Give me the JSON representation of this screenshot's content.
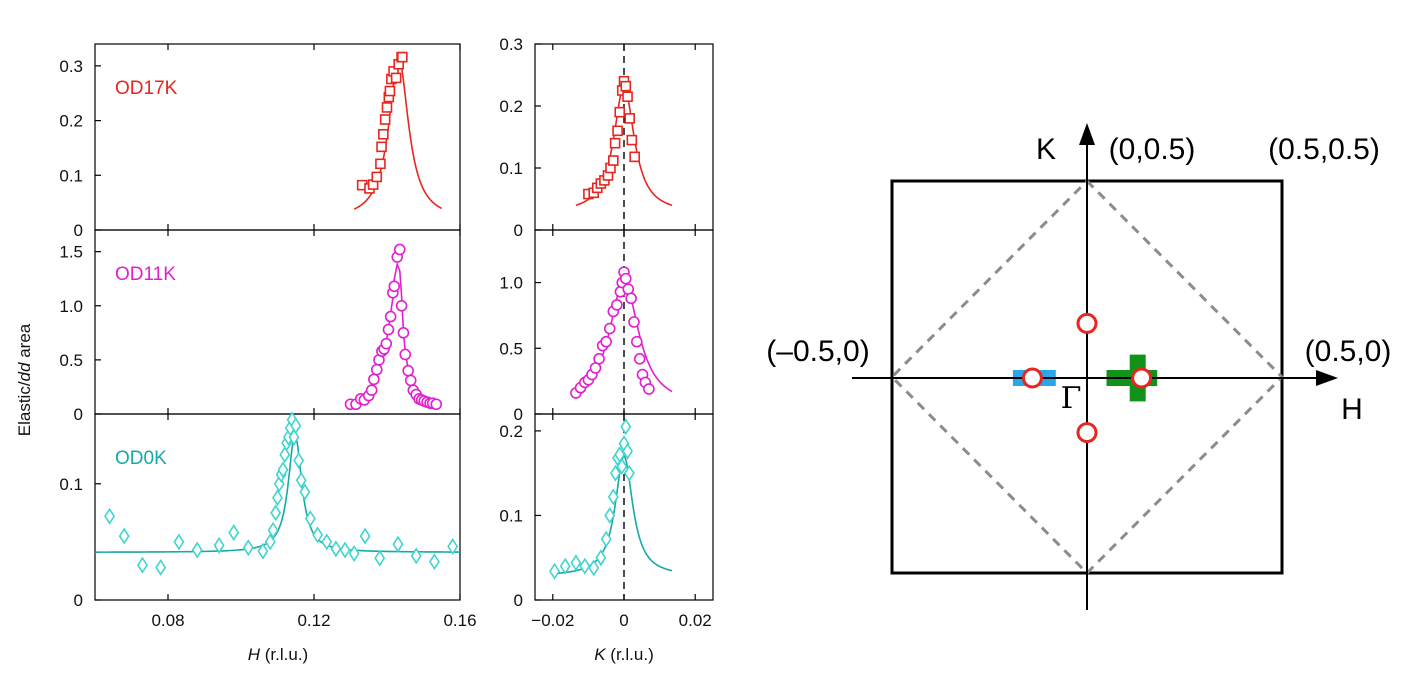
{
  "colors": {
    "od17k": "#e8251f",
    "od11k": "#e21fd0",
    "od0k": "#16a9a6",
    "od0k_markers": "#3fd4cf",
    "cut_h": "#2aa7e8",
    "cut_k": "#119319",
    "peak_marker": "#e8251f",
    "zone_line": "#8c8c8c"
  },
  "shared": {
    "ylabel": "Elastic/dd area",
    "ylabel_prefix": "Elastic/",
    "ylabel_italic": "dd",
    "ylabel_suffix": " area",
    "h_xlabel_var": "H",
    "h_xlabel_unit": " (r.l.u.)",
    "k_xlabel_var": "K",
    "k_xlabel_unit": " (r.l.u.)"
  },
  "chart_data": [
    {
      "type": "scatter",
      "panel": "h_od17k",
      "label": "OD17K",
      "color_key": "od17k",
      "marker": "square",
      "xlim": [
        0.06,
        0.16
      ],
      "ylim": [
        0,
        0.34
      ],
      "xticks": [
        0.08,
        0.12,
        0.16
      ],
      "xtick_labels": [],
      "yticks": [
        0,
        0.1,
        0.2,
        0.3
      ],
      "ytick_labels": [
        "0",
        "0.1",
        "0.2",
        "0.3"
      ],
      "x": [
        0.1332,
        0.1352,
        0.1362,
        0.1372,
        0.1382,
        0.1385,
        0.139,
        0.1395,
        0.14,
        0.1405,
        0.1408,
        0.1412,
        0.1418,
        0.1425,
        0.1432,
        0.144,
        0.1442
      ],
      "y": [
        0.082,
        0.076,
        0.083,
        0.097,
        0.121,
        0.152,
        0.175,
        0.202,
        0.224,
        0.243,
        0.254,
        0.276,
        0.29,
        0.278,
        0.303,
        0.316,
        0.316
      ],
      "fit": {
        "center": 0.1432,
        "amplitude": 0.295,
        "hwhm": 0.0033,
        "baseline": 0.018,
        "x_range": [
          0.131,
          0.155
        ]
      }
    },
    {
      "type": "scatter",
      "panel": "h_od11k",
      "label": "OD11K",
      "color_key": "od11k",
      "marker": "circle",
      "xlim": [
        0.06,
        0.16
      ],
      "ylim": [
        0,
        1.7
      ],
      "xticks": [
        0.08,
        0.12,
        0.16
      ],
      "xtick_labels": [],
      "yticks": [
        0,
        0.5,
        1.0,
        1.5
      ],
      "ytick_labels": [
        "0",
        "0.5",
        "1.0",
        "1.5"
      ],
      "x": [
        0.13,
        0.1315,
        0.1328,
        0.1338,
        0.135,
        0.1358,
        0.1364,
        0.1372,
        0.1378,
        0.1386,
        0.1392,
        0.1398,
        0.1404,
        0.141,
        0.1416,
        0.142,
        0.1428,
        0.1435,
        0.144,
        0.1445,
        0.145,
        0.1458,
        0.1465,
        0.1472,
        0.148,
        0.1488,
        0.1495,
        0.1502,
        0.151,
        0.1518,
        0.1525,
        0.1535
      ],
      "y": [
        0.09,
        0.09,
        0.14,
        0.13,
        0.17,
        0.22,
        0.32,
        0.41,
        0.5,
        0.58,
        0.6,
        0.65,
        0.78,
        0.9,
        1.12,
        1.18,
        1.45,
        1.52,
        1.0,
        0.75,
        0.55,
        0.4,
        0.31,
        0.22,
        0.18,
        0.14,
        0.13,
        0.12,
        0.11,
        0.1,
        0.1,
        0.09
      ]
    },
    {
      "type": "scatter",
      "panel": "h_od0k",
      "label": "OD0K",
      "color_key": "od0k",
      "marker": "diamond",
      "xlim": [
        0.06,
        0.16
      ],
      "ylim": [
        0,
        0.16
      ],
      "xticks": [
        0.08,
        0.12,
        0.16
      ],
      "xtick_labels": [
        "0.08",
        "0.12",
        "0.16"
      ],
      "yticks": [
        0,
        0.1
      ],
      "ytick_labels": [
        "0",
        "0.1"
      ],
      "x": [
        0.064,
        0.068,
        0.073,
        0.078,
        0.083,
        0.088,
        0.094,
        0.098,
        0.102,
        0.106,
        0.108,
        0.1088,
        0.1095,
        0.11,
        0.1105,
        0.111,
        0.1115,
        0.112,
        0.1125,
        0.113,
        0.1135,
        0.114,
        0.1145,
        0.115,
        0.1158,
        0.1165,
        0.1175,
        0.119,
        0.121,
        0.1235,
        0.126,
        0.1285,
        0.131,
        0.134,
        0.138,
        0.143,
        0.148,
        0.153,
        0.158
      ],
      "y": [
        0.072,
        0.055,
        0.03,
        0.028,
        0.05,
        0.043,
        0.047,
        0.058,
        0.045,
        0.042,
        0.05,
        0.06,
        0.075,
        0.088,
        0.1,
        0.108,
        0.112,
        0.125,
        0.135,
        0.14,
        0.148,
        0.155,
        0.14,
        0.15,
        0.12,
        0.103,
        0.093,
        0.07,
        0.056,
        0.05,
        0.044,
        0.043,
        0.04,
        0.055,
        0.036,
        0.048,
        0.038,
        0.033,
        0.046
      ],
      "fit": {
        "center": 0.1148,
        "amplitude": 0.102,
        "hwhm": 0.0022,
        "baseline": 0.041,
        "x_range": [
          0.06,
          0.16
        ]
      }
    },
    {
      "type": "scatter",
      "panel": "k_od17k",
      "label": "",
      "color_key": "od17k",
      "marker": "square",
      "xlim": [
        -0.025,
        0.025
      ],
      "ylim": [
        0,
        0.3
      ],
      "xticks": [
        -0.02,
        0,
        0.02
      ],
      "xtick_labels": [],
      "yticks": [
        0,
        0.1,
        0.2,
        0.3
      ],
      "ytick_labels": [
        "0",
        "0.1",
        "0.2",
        "0.3"
      ],
      "x": [
        -0.01,
        -0.0085,
        -0.0075,
        -0.0065,
        -0.0055,
        -0.0045,
        -0.0038,
        -0.003,
        -0.0025,
        -0.0018,
        -0.0012,
        -0.0005,
        0.0,
        0.0005,
        0.001,
        0.0016,
        0.0022,
        0.003
      ],
      "y": [
        0.058,
        0.06,
        0.068,
        0.075,
        0.08,
        0.088,
        0.1,
        0.112,
        0.14,
        0.16,
        0.19,
        0.225,
        0.24,
        0.232,
        0.215,
        0.18,
        0.145,
        0.118
      ],
      "fit": {
        "center": 0.0,
        "amplitude": 0.205,
        "hwhm": 0.0035,
        "baseline": 0.027,
        "x_range": [
          -0.0135,
          0.0135
        ]
      }
    },
    {
      "type": "scatter",
      "panel": "k_od11k",
      "label": "",
      "color_key": "od11k",
      "marker": "circle",
      "xlim": [
        -0.025,
        0.025
      ],
      "ylim": [
        0,
        1.4
      ],
      "xticks": [
        -0.02,
        0,
        0.02
      ],
      "xtick_labels": [],
      "yticks": [
        0,
        0.5,
        1.0
      ],
      "ytick_labels": [
        "0",
        "0.5",
        "1.0"
      ],
      "x": [
        -0.0135,
        -0.0122,
        -0.011,
        -0.01,
        -0.009,
        -0.008,
        -0.007,
        -0.006,
        -0.005,
        -0.004,
        -0.003,
        -0.002,
        -0.001,
        -0.0005,
        0.0,
        0.0005,
        0.0012,
        0.002,
        0.0028,
        0.0036,
        0.0044,
        0.0052,
        0.006,
        0.007
      ],
      "y": [
        0.16,
        0.2,
        0.24,
        0.26,
        0.3,
        0.35,
        0.42,
        0.52,
        0.55,
        0.65,
        0.78,
        0.83,
        0.93,
        1.0,
        1.08,
        1.03,
        0.95,
        0.88,
        0.7,
        0.55,
        0.42,
        0.3,
        0.24,
        0.19
      ],
      "fit": {
        "center": 0.0,
        "amplitude": 0.96,
        "hwhm": 0.005,
        "baseline": 0.055,
        "x_range": [
          -0.0135,
          0.0135
        ]
      }
    },
    {
      "type": "scatter",
      "panel": "k_od0k",
      "label": "",
      "color_key": "od0k",
      "marker": "diamond",
      "xlim": [
        -0.025,
        0.025
      ],
      "ylim": [
        0,
        0.22
      ],
      "xticks": [
        -0.02,
        0,
        0.02
      ],
      "xtick_labels": [
        "−0.02",
        "0",
        "0.02"
      ],
      "yticks": [
        0,
        0.1,
        0.2
      ],
      "ytick_labels": [
        "0",
        "0.1",
        "0.2"
      ],
      "x": [
        -0.0195,
        -0.0165,
        -0.0135,
        -0.011,
        -0.0085,
        -0.0065,
        -0.005,
        -0.004,
        -0.003,
        -0.0024,
        -0.0018,
        -0.0012,
        -0.0006,
        0.0,
        0.0005,
        0.001,
        0.0015
      ],
      "y": [
        0.034,
        0.04,
        0.044,
        0.04,
        0.038,
        0.05,
        0.072,
        0.1,
        0.122,
        0.15,
        0.168,
        0.172,
        0.158,
        0.185,
        0.205,
        0.176,
        0.15
      ],
      "fit": {
        "center": 0.0,
        "amplitude": 0.142,
        "hwhm": 0.003,
        "baseline": 0.028,
        "x_range": [
          -0.0195,
          0.0135
        ]
      }
    }
  ],
  "bz_diagram": {
    "k_axis_label": "K",
    "h_axis_label": "H",
    "gamma_label": "Γ",
    "top_center_label": "(0,0.5)",
    "top_right_label": "(0.5,0.5)",
    "left_label": "(–0.5,0)",
    "right_label": "(0.5,0)",
    "cuts": [
      {
        "name": "h-cut",
        "color_key": "cut_h",
        "along": "H",
        "h_range": [
          -0.19,
          -0.08
        ],
        "k": 0.0
      },
      {
        "name": "k-cut-horizontal",
        "color_key": "cut_k",
        "along": "H",
        "h_range": [
          0.05,
          0.18
        ],
        "k": 0.0
      },
      {
        "name": "k-cut-vertical",
        "color_key": "cut_k",
        "along": "K",
        "k_range": [
          -0.06,
          0.06
        ],
        "h": 0.13
      }
    ],
    "peaks": [
      {
        "h": -0.14,
        "k": 0.0
      },
      {
        "h": 0.14,
        "k": 0.0
      },
      {
        "h": 0.0,
        "k": 0.14
      },
      {
        "h": 0.0,
        "k": -0.14
      }
    ]
  }
}
